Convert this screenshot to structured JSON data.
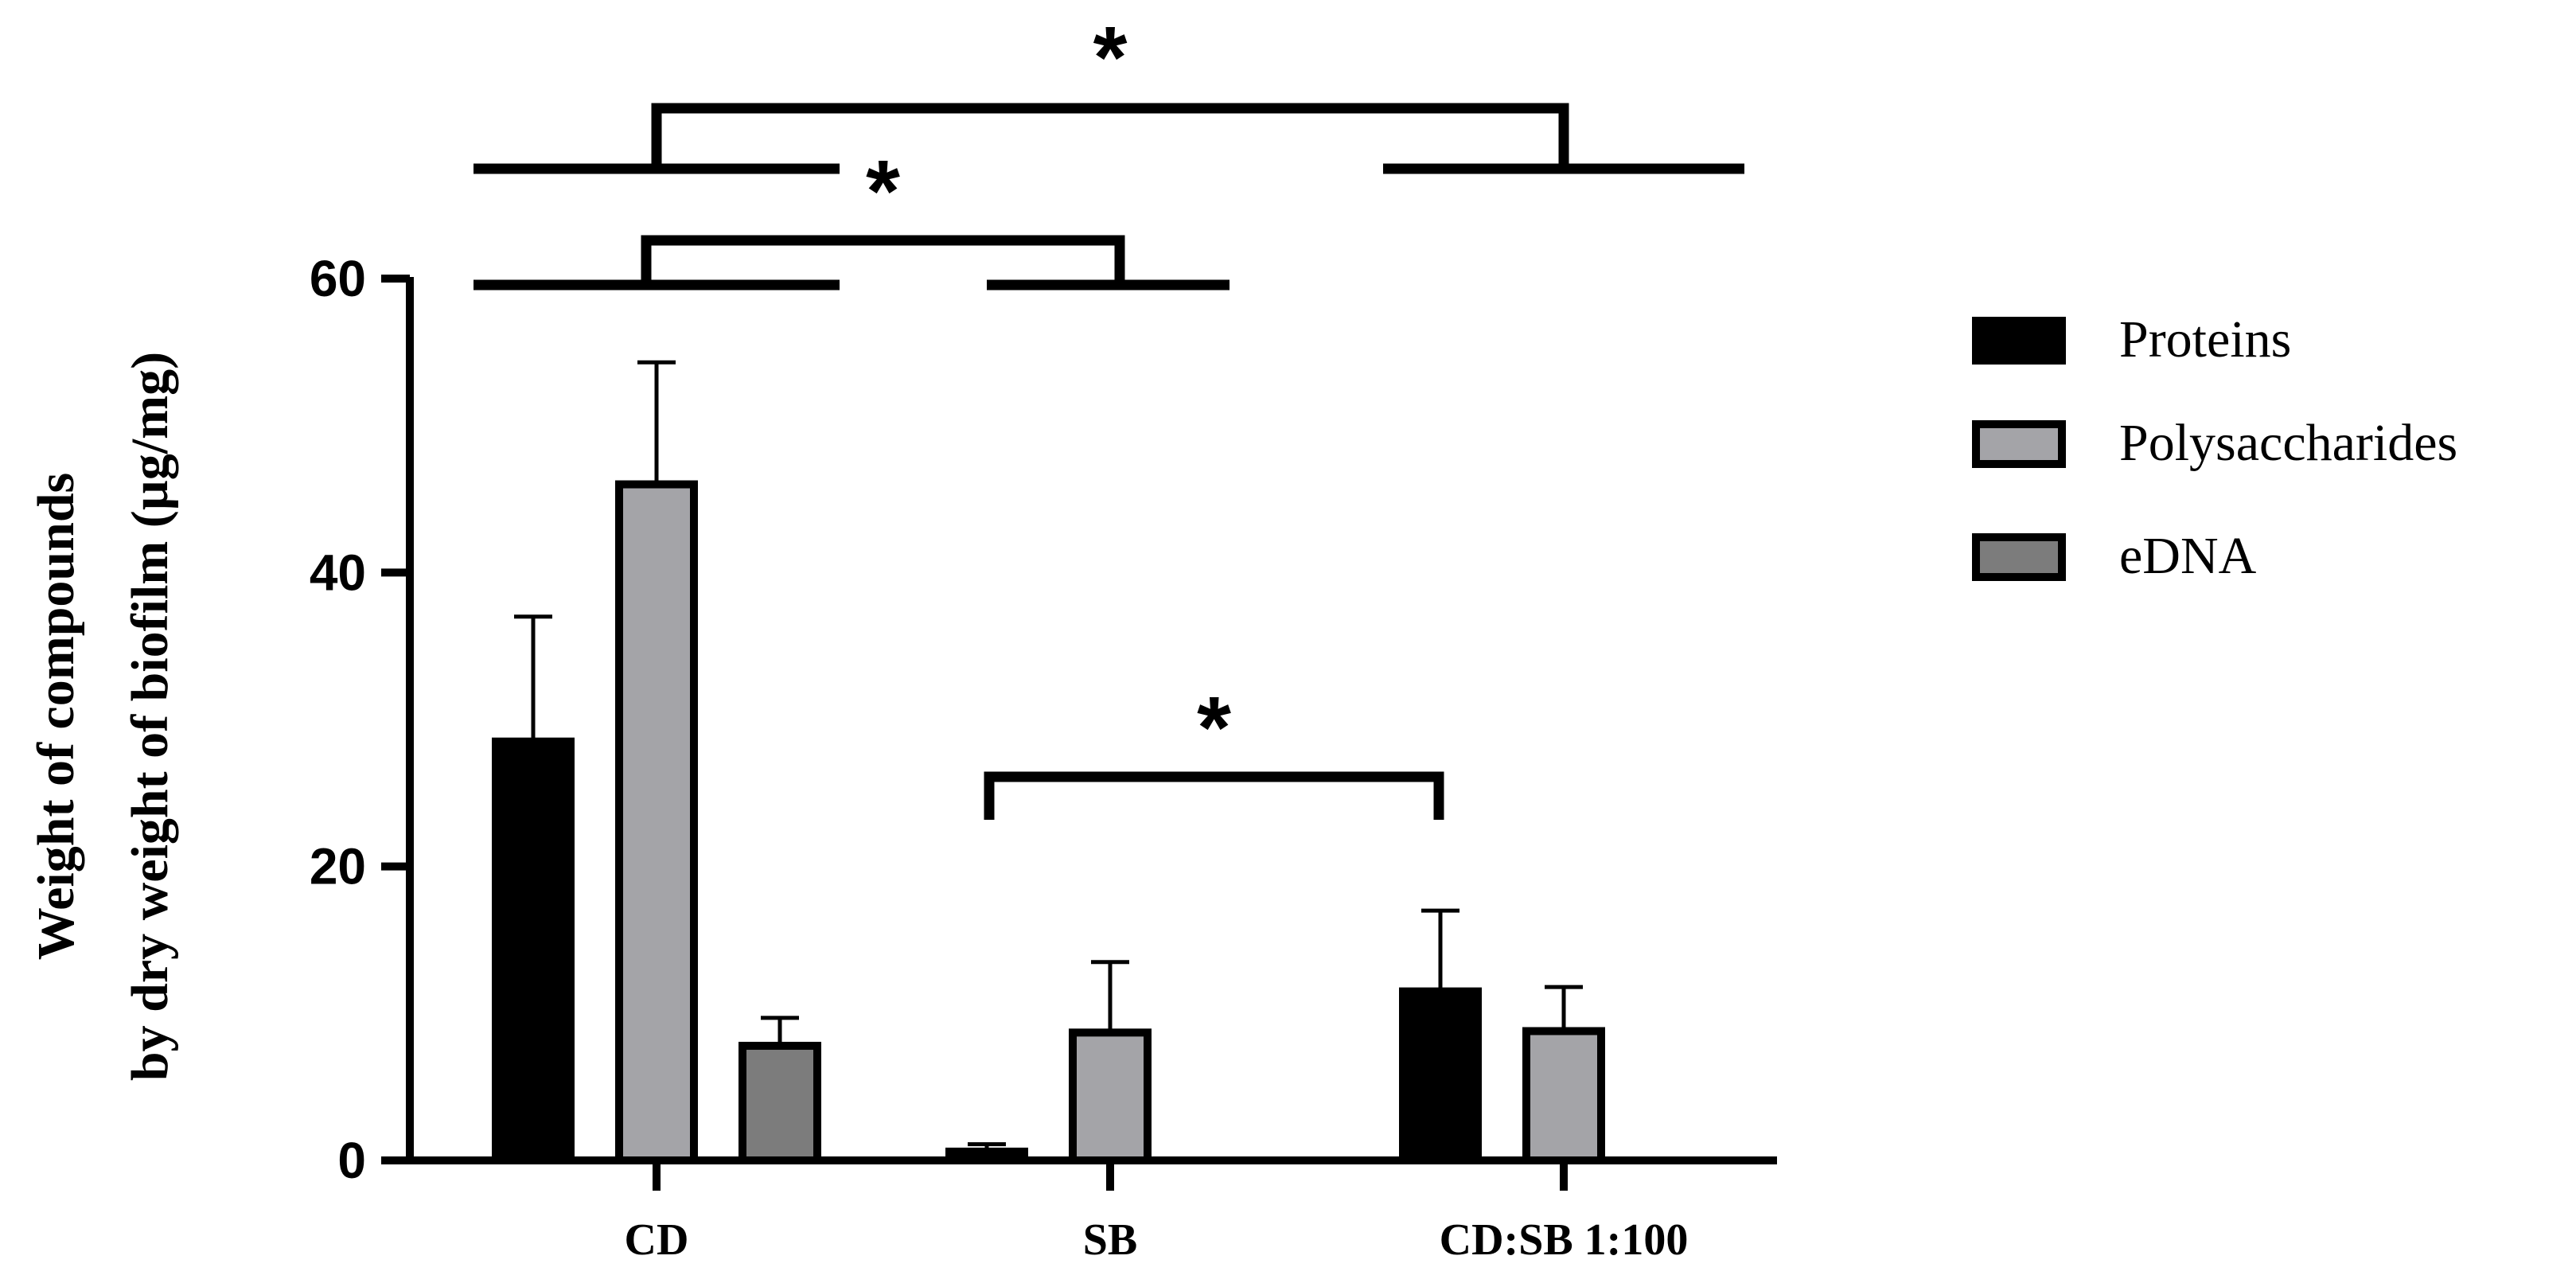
{
  "chart_data": {
    "type": "bar",
    "categories": [
      "CD",
      "SB",
      "CD:SB 1:100"
    ],
    "ylabel_lines": [
      "Weight of compounds",
      "by dry weight of biofilm (µg/mg)"
    ],
    "xlabel": "",
    "ylim": [
      0,
      60
    ],
    "yticks": [
      0,
      20,
      40,
      60
    ],
    "grid": false,
    "legend_position": "right",
    "series": [
      {
        "name": "Proteins",
        "color": "#000000",
        "values": [
          28.5,
          0.6,
          11.5
        ],
        "errors": [
          8.5,
          0.5,
          5.5
        ]
      },
      {
        "name": "Polysaccharides",
        "color": "#a4a4a8",
        "values": [
          46.0,
          8.7,
          8.8
        ],
        "errors": [
          8.3,
          4.8,
          3.0
        ]
      },
      {
        "name": "eDNA",
        "color": "#7c7c7c",
        "values": [
          7.8,
          null,
          null
        ],
        "errors": [
          1.9,
          null,
          null
        ]
      }
    ],
    "significance": [
      {
        "label": "*",
        "from": "CD",
        "to": "CD:SB 1:100"
      },
      {
        "label": "*",
        "from": "CD",
        "to": "SB"
      },
      {
        "label": "*",
        "from": "SB",
        "to": "CD:SB 1:100"
      }
    ]
  }
}
